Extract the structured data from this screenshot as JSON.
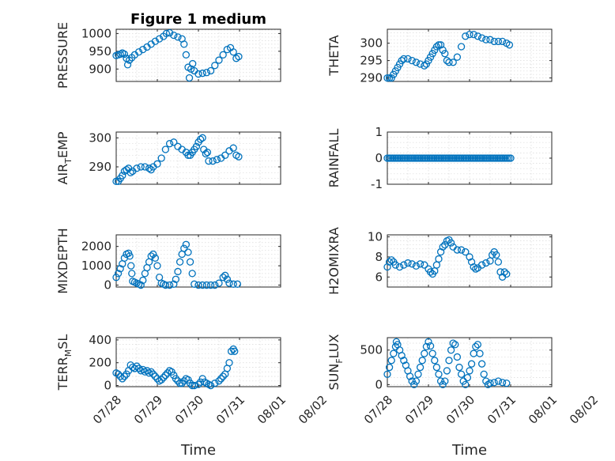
{
  "figure": {
    "title": "Figure 1 medium",
    "marker_color": "#0072BD",
    "axis_color": "#262626"
  },
  "chart_data": [
    {
      "type": "scatter",
      "panel": "pressure",
      "title": "Figure 1 medium",
      "ylabel": "PRESSURE",
      "xlabel": "",
      "xlim": [
        0,
        4
      ],
      "ylim": [
        865,
        1012
      ],
      "yticks": [
        900,
        950,
        1000
      ],
      "grid": true,
      "points": [
        [
          0.0,
          938
        ],
        [
          0.05,
          940
        ],
        [
          0.1,
          942
        ],
        [
          0.15,
          945
        ],
        [
          0.2,
          942
        ],
        [
          0.25,
          930
        ],
        [
          0.28,
          912
        ],
        [
          0.32,
          925
        ],
        [
          0.38,
          932
        ],
        [
          0.45,
          940
        ],
        [
          0.55,
          948
        ],
        [
          0.65,
          955
        ],
        [
          0.75,
          962
        ],
        [
          0.85,
          970
        ],
        [
          0.95,
          978
        ],
        [
          1.05,
          985
        ],
        [
          1.15,
          992
        ],
        [
          1.22,
          1000
        ],
        [
          1.3,
          1002
        ],
        [
          1.4,
          995
        ],
        [
          1.5,
          990
        ],
        [
          1.6,
          985
        ],
        [
          1.65,
          970
        ],
        [
          1.7,
          940
        ],
        [
          1.75,
          905
        ],
        [
          1.78,
          875
        ],
        [
          1.82,
          900
        ],
        [
          1.86,
          915
        ],
        [
          1.9,
          895
        ],
        [
          2.0,
          886
        ],
        [
          2.1,
          888
        ],
        [
          2.2,
          890
        ],
        [
          2.3,
          895
        ],
        [
          2.4,
          910
        ],
        [
          2.5,
          925
        ],
        [
          2.6,
          940
        ],
        [
          2.7,
          955
        ],
        [
          2.78,
          960
        ],
        [
          2.85,
          948
        ],
        [
          2.92,
          930
        ],
        [
          2.98,
          935
        ]
      ]
    },
    {
      "type": "scatter",
      "panel": "theta",
      "ylabel": "THETA",
      "xlabel": "",
      "xlim": [
        0,
        4
      ],
      "ylim": [
        289,
        304
      ],
      "yticks": [
        290,
        295,
        300
      ],
      "grid": true,
      "points": [
        [
          0.0,
          290
        ],
        [
          0.05,
          290
        ],
        [
          0.1,
          290
        ],
        [
          0.15,
          291
        ],
        [
          0.2,
          292
        ],
        [
          0.25,
          293
        ],
        [
          0.3,
          294
        ],
        [
          0.35,
          295
        ],
        [
          0.4,
          295.5
        ],
        [
          0.5,
          295.5
        ],
        [
          0.6,
          295
        ],
        [
          0.7,
          294.5
        ],
        [
          0.8,
          294
        ],
        [
          0.9,
          293.5
        ],
        [
          0.95,
          294
        ],
        [
          1.0,
          295
        ],
        [
          1.05,
          296
        ],
        [
          1.1,
          297
        ],
        [
          1.15,
          298
        ],
        [
          1.2,
          299
        ],
        [
          1.25,
          299.5
        ],
        [
          1.3,
          299.5
        ],
        [
          1.35,
          298
        ],
        [
          1.4,
          297
        ],
        [
          1.45,
          295
        ],
        [
          1.5,
          294.5
        ],
        [
          1.6,
          294.5
        ],
        [
          1.7,
          296
        ],
        [
          1.8,
          299
        ],
        [
          1.9,
          302
        ],
        [
          2.0,
          302.5
        ],
        [
          2.1,
          302.5
        ],
        [
          2.2,
          302
        ],
        [
          2.3,
          301.5
        ],
        [
          2.4,
          301
        ],
        [
          2.5,
          301
        ],
        [
          2.6,
          300.5
        ],
        [
          2.7,
          300.5
        ],
        [
          2.8,
          300.5
        ],
        [
          2.9,
          300
        ],
        [
          2.97,
          299.5
        ]
      ]
    },
    {
      "type": "scatter",
      "panel": "air-temp",
      "ylabel": "AIR_TEMP",
      "ylabel_parts": [
        "AIR",
        "T",
        "EMP"
      ],
      "xlabel": "",
      "xlim": [
        0,
        4
      ],
      "ylim": [
        284,
        302
      ],
      "yticks": [
        290,
        300
      ],
      "grid": true,
      "points": [
        [
          0.0,
          285
        ],
        [
          0.05,
          285
        ],
        [
          0.1,
          286
        ],
        [
          0.15,
          287
        ],
        [
          0.2,
          288.5
        ],
        [
          0.25,
          289
        ],
        [
          0.3,
          289.5
        ],
        [
          0.35,
          288
        ],
        [
          0.4,
          288.5
        ],
        [
          0.5,
          289.5
        ],
        [
          0.6,
          290
        ],
        [
          0.7,
          290
        ],
        [
          0.8,
          289.5
        ],
        [
          0.85,
          289
        ],
        [
          0.9,
          290
        ],
        [
          1.0,
          291
        ],
        [
          1.1,
          293
        ],
        [
          1.2,
          296
        ],
        [
          1.3,
          298
        ],
        [
          1.4,
          298.5
        ],
        [
          1.5,
          297
        ],
        [
          1.6,
          296
        ],
        [
          1.7,
          295
        ],
        [
          1.75,
          294
        ],
        [
          1.8,
          294
        ],
        [
          1.85,
          295
        ],
        [
          1.9,
          296
        ],
        [
          1.95,
          297
        ],
        [
          2.0,
          298.5
        ],
        [
          2.05,
          299.5
        ],
        [
          2.1,
          300
        ],
        [
          2.13,
          296
        ],
        [
          2.18,
          294.5
        ],
        [
          2.22,
          295
        ],
        [
          2.25,
          292
        ],
        [
          2.35,
          292
        ],
        [
          2.45,
          292.5
        ],
        [
          2.55,
          293
        ],
        [
          2.65,
          294
        ],
        [
          2.75,
          295.5
        ],
        [
          2.85,
          296.5
        ],
        [
          2.92,
          294
        ],
        [
          2.98,
          293.5
        ]
      ]
    },
    {
      "type": "scatter",
      "panel": "rainfall",
      "ylabel": "RAINFALL",
      "xlabel": "",
      "xlim": [
        0,
        4
      ],
      "ylim": [
        -1,
        1
      ],
      "yticks": [
        -1,
        0,
        1
      ],
      "grid": true,
      "constant": {
        "x_from": 0.0,
        "x_to": 3.0,
        "y": 0,
        "count": 70
      }
    },
    {
      "type": "scatter",
      "panel": "mixdepth",
      "ylabel": "MIXDEPTH",
      "xlabel": "",
      "xlim": [
        0,
        4
      ],
      "ylim": [
        -100,
        2600
      ],
      "yticks": [
        0,
        1000,
        2000
      ],
      "grid": true,
      "points": [
        [
          0.0,
          400
        ],
        [
          0.05,
          600
        ],
        [
          0.1,
          850
        ],
        [
          0.15,
          1100
        ],
        [
          0.2,
          1400
        ],
        [
          0.25,
          1600
        ],
        [
          0.3,
          1650
        ],
        [
          0.33,
          1500
        ],
        [
          0.36,
          1000
        ],
        [
          0.38,
          600
        ],
        [
          0.4,
          200
        ],
        [
          0.45,
          150
        ],
        [
          0.5,
          100
        ],
        [
          0.55,
          50
        ],
        [
          0.6,
          0
        ],
        [
          0.65,
          250
        ],
        [
          0.7,
          600
        ],
        [
          0.75,
          900
        ],
        [
          0.8,
          1200
        ],
        [
          0.85,
          1500
        ],
        [
          0.9,
          1600
        ],
        [
          0.95,
          1400
        ],
        [
          1.0,
          1000
        ],
        [
          1.05,
          400
        ],
        [
          1.1,
          100
        ],
        [
          1.15,
          50
        ],
        [
          1.2,
          0
        ],
        [
          1.3,
          0
        ],
        [
          1.4,
          50
        ],
        [
          1.45,
          300
        ],
        [
          1.5,
          700
        ],
        [
          1.55,
          1200
        ],
        [
          1.6,
          1600
        ],
        [
          1.65,
          1900
        ],
        [
          1.7,
          2100
        ],
        [
          1.75,
          1700
        ],
        [
          1.8,
          1200
        ],
        [
          1.85,
          600
        ],
        [
          1.9,
          50
        ],
        [
          2.0,
          0
        ],
        [
          2.1,
          0
        ],
        [
          2.2,
          0
        ],
        [
          2.3,
          0
        ],
        [
          2.4,
          0
        ],
        [
          2.5,
          100
        ],
        [
          2.6,
          400
        ],
        [
          2.65,
          500
        ],
        [
          2.7,
          300
        ],
        [
          2.75,
          100
        ],
        [
          2.85,
          50
        ],
        [
          2.95,
          50
        ]
      ]
    },
    {
      "type": "scatter",
      "panel": "h2omixra",
      "ylabel": "H2OMIXRA",
      "xlabel": "",
      "xlim": [
        0,
        4
      ],
      "ylim": [
        5,
        10.2
      ],
      "yticks": [
        6,
        8,
        10
      ],
      "grid": true,
      "points": [
        [
          0.0,
          7.0
        ],
        [
          0.05,
          7.5
        ],
        [
          0.1,
          7.7
        ],
        [
          0.15,
          7.5
        ],
        [
          0.2,
          7.2
        ],
        [
          0.3,
          7.0
        ],
        [
          0.4,
          7.2
        ],
        [
          0.5,
          7.4
        ],
        [
          0.6,
          7.3
        ],
        [
          0.7,
          7.1
        ],
        [
          0.8,
          7.3
        ],
        [
          0.9,
          7.2
        ],
        [
          1.0,
          6.8
        ],
        [
          1.05,
          6.5
        ],
        [
          1.1,
          6.3
        ],
        [
          1.15,
          6.6
        ],
        [
          1.2,
          7.2
        ],
        [
          1.25,
          7.8
        ],
        [
          1.3,
          8.5
        ],
        [
          1.35,
          9.0
        ],
        [
          1.4,
          9.2
        ],
        [
          1.45,
          9.6
        ],
        [
          1.5,
          9.7
        ],
        [
          1.55,
          9.4
        ],
        [
          1.6,
          9.0
        ],
        [
          1.7,
          8.7
        ],
        [
          1.8,
          8.7
        ],
        [
          1.9,
          8.5
        ],
        [
          2.0,
          8.0
        ],
        [
          2.05,
          7.5
        ],
        [
          2.1,
          7.0
        ],
        [
          2.15,
          6.8
        ],
        [
          2.2,
          6.9
        ],
        [
          2.3,
          7.2
        ],
        [
          2.4,
          7.4
        ],
        [
          2.5,
          7.6
        ],
        [
          2.55,
          8.2
        ],
        [
          2.6,
          8.5
        ],
        [
          2.65,
          8.2
        ],
        [
          2.7,
          7.5
        ],
        [
          2.75,
          6.5
        ],
        [
          2.8,
          6.0
        ],
        [
          2.85,
          6.5
        ],
        [
          2.9,
          6.3
        ]
      ]
    },
    {
      "type": "scatter",
      "panel": "terr-msl",
      "ylabel": "TERR_MSL",
      "ylabel_parts": [
        "TERR",
        "M",
        "SL"
      ],
      "xlabel": "Time",
      "xlim": [
        0,
        4
      ],
      "ylim": [
        -10,
        420
      ],
      "yticks": [
        0,
        200,
        400
      ],
      "grid": true,
      "points": [
        [
          0.0,
          110
        ],
        [
          0.05,
          100
        ],
        [
          0.1,
          80
        ],
        [
          0.15,
          60
        ],
        [
          0.2,
          80
        ],
        [
          0.25,
          100
        ],
        [
          0.3,
          130
        ],
        [
          0.35,
          180
        ],
        [
          0.4,
          160
        ],
        [
          0.45,
          150
        ],
        [
          0.5,
          170
        ],
        [
          0.55,
          150
        ],
        [
          0.6,
          130
        ],
        [
          0.65,
          140
        ],
        [
          0.7,
          120
        ],
        [
          0.75,
          130
        ],
        [
          0.8,
          110
        ],
        [
          0.85,
          120
        ],
        [
          0.9,
          100
        ],
        [
          0.95,
          80
        ],
        [
          1.0,
          60
        ],
        [
          1.05,
          40
        ],
        [
          1.1,
          50
        ],
        [
          1.15,
          70
        ],
        [
          1.2,
          90
        ],
        [
          1.25,
          110
        ],
        [
          1.3,
          130
        ],
        [
          1.35,
          120
        ],
        [
          1.4,
          90
        ],
        [
          1.45,
          60
        ],
        [
          1.5,
          40
        ],
        [
          1.55,
          20
        ],
        [
          1.6,
          20
        ],
        [
          1.65,
          40
        ],
        [
          1.7,
          60
        ],
        [
          1.75,
          50
        ],
        [
          1.8,
          20
        ],
        [
          1.85,
          0
        ],
        [
          1.9,
          0
        ],
        [
          2.0,
          10
        ],
        [
          2.05,
          30
        ],
        [
          2.1,
          60
        ],
        [
          2.15,
          30
        ],
        [
          2.2,
          20
        ],
        [
          2.25,
          10
        ],
        [
          2.3,
          0
        ],
        [
          2.4,
          20
        ],
        [
          2.5,
          40
        ],
        [
          2.55,
          60
        ],
        [
          2.6,
          80
        ],
        [
          2.65,
          100
        ],
        [
          2.7,
          150
        ],
        [
          2.75,
          200
        ],
        [
          2.8,
          300
        ],
        [
          2.85,
          320
        ],
        [
          2.88,
          300
        ]
      ]
    },
    {
      "type": "scatter",
      "panel": "sun-flux",
      "ylabel": "SUN_FLUX",
      "ylabel_parts": [
        "SUN",
        "F",
        "LUX"
      ],
      "xlabel": "Time",
      "xlim": [
        0,
        4
      ],
      "ylim": [
        -30,
        680
      ],
      "yticks": [
        0,
        500
      ],
      "grid": true,
      "points": [
        [
          0.0,
          150
        ],
        [
          0.05,
          250
        ],
        [
          0.1,
          350
        ],
        [
          0.15,
          450
        ],
        [
          0.2,
          550
        ],
        [
          0.22,
          620
        ],
        [
          0.25,
          580
        ],
        [
          0.3,
          500
        ],
        [
          0.35,
          420
        ],
        [
          0.4,
          350
        ],
        [
          0.45,
          280
        ],
        [
          0.5,
          200
        ],
        [
          0.55,
          120
        ],
        [
          0.6,
          50
        ],
        [
          0.65,
          0
        ],
        [
          0.7,
          50
        ],
        [
          0.75,
          150
        ],
        [
          0.8,
          250
        ],
        [
          0.85,
          350
        ],
        [
          0.9,
          450
        ],
        [
          0.95,
          550
        ],
        [
          1.0,
          620
        ],
        [
          1.05,
          560
        ],
        [
          1.1,
          450
        ],
        [
          1.15,
          350
        ],
        [
          1.2,
          250
        ],
        [
          1.25,
          150
        ],
        [
          1.3,
          50
        ],
        [
          1.35,
          0
        ],
        [
          1.4,
          50
        ],
        [
          1.45,
          200
        ],
        [
          1.5,
          350
        ],
        [
          1.55,
          500
        ],
        [
          1.6,
          600
        ],
        [
          1.65,
          580
        ],
        [
          1.7,
          400
        ],
        [
          1.75,
          250
        ],
        [
          1.8,
          150
        ],
        [
          1.85,
          50
        ],
        [
          1.9,
          0
        ],
        [
          1.95,
          100
        ],
        [
          2.0,
          200
        ],
        [
          2.05,
          300
        ],
        [
          2.1,
          450
        ],
        [
          2.15,
          550
        ],
        [
          2.2,
          580
        ],
        [
          2.25,
          450
        ],
        [
          2.3,
          300
        ],
        [
          2.35,
          150
        ],
        [
          2.4,
          50
        ],
        [
          2.45,
          0
        ],
        [
          2.5,
          20
        ],
        [
          2.6,
          30
        ],
        [
          2.7,
          50
        ],
        [
          2.8,
          30
        ],
        [
          2.9,
          20
        ]
      ]
    }
  ],
  "x_tick_labels": [
    "07/28",
    "07/29",
    "07/30",
    "07/31",
    "08/01",
    "08/02"
  ]
}
